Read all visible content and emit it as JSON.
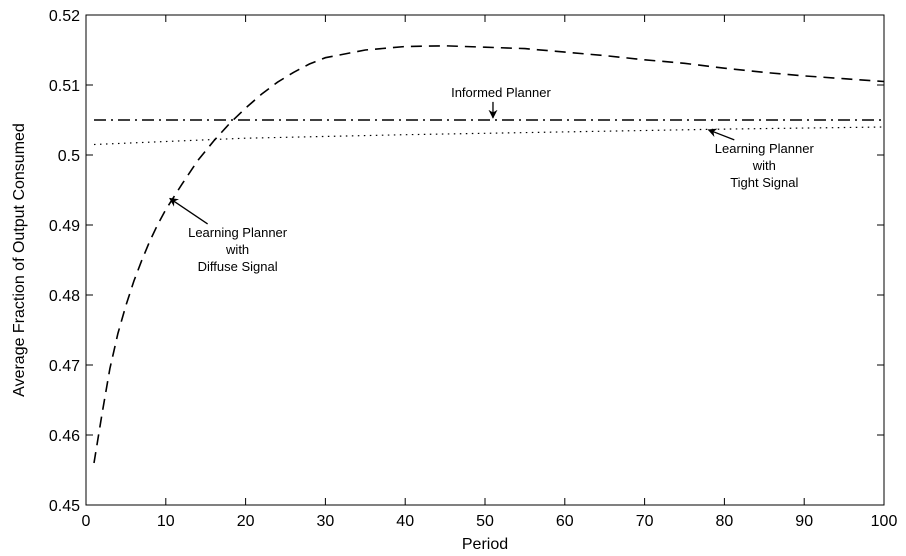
{
  "chart_data": {
    "type": "line",
    "xlabel": "Period",
    "ylabel": "Average Fraction of Output Consumed",
    "xlim": [
      0,
      100
    ],
    "ylim": [
      0.45,
      0.52
    ],
    "grid": false,
    "x_ticks": [
      0,
      10,
      20,
      30,
      40,
      50,
      60,
      70,
      80,
      90,
      100
    ],
    "x_tick_labels": [
      "0",
      "10",
      "20",
      "30",
      "40",
      "50",
      "60",
      "70",
      "80",
      "90",
      "100"
    ],
    "y_ticks": [
      0.45,
      0.46,
      0.47,
      0.48,
      0.49,
      0.5,
      0.51,
      0.52
    ],
    "y_tick_labels": [
      "0.45",
      "0.46",
      "0.47",
      "0.48",
      "0.49",
      "0.5",
      "0.51",
      "0.52"
    ],
    "series": [
      {
        "style": "dashed",
        "x": [
          1,
          2,
          3,
          4,
          5,
          6,
          7,
          8,
          9,
          10,
          12,
          14,
          16,
          18,
          20,
          22,
          24,
          26,
          28,
          30,
          35,
          40,
          45,
          50,
          55,
          60,
          65,
          70,
          75,
          80,
          85,
          90,
          95,
          100
        ],
        "y": [
          0.456,
          0.463,
          0.4695,
          0.4745,
          0.4785,
          0.482,
          0.485,
          0.4877,
          0.4901,
          0.4922,
          0.4958,
          0.4992,
          0.502,
          0.5045,
          0.5067,
          0.5087,
          0.5104,
          0.5118,
          0.513,
          0.5139,
          0.515,
          0.5155,
          0.5156,
          0.5154,
          0.5152,
          0.5147,
          0.5142,
          0.5136,
          0.5131,
          0.5124,
          0.5118,
          0.5113,
          0.5109,
          0.5105
        ]
      },
      {
        "style": "dashdot",
        "x": [
          1,
          100
        ],
        "y": [
          0.505,
          0.505
        ]
      },
      {
        "style": "dotted",
        "x": [
          1,
          20,
          40,
          60,
          80,
          100
        ],
        "y": [
          0.5015,
          0.5024,
          0.5029,
          0.5033,
          0.5037,
          0.504
        ]
      }
    ],
    "annotations": [
      {
        "lines": [
          "Informed Planner"
        ],
        "text_x": 52,
        "text_y": 0.5083,
        "arrow_to": [
          51,
          0.5053
        ]
      },
      {
        "lines": [
          "Learning Planner",
          "with",
          "Tight Signal"
        ],
        "text_x": 85,
        "text_y": 0.5003,
        "arrow_to": [
          78,
          0.5036
        ]
      },
      {
        "lines": [
          "Learning Planner",
          "with",
          "Diffuse Signal"
        ],
        "text_x": 19,
        "text_y": 0.4883,
        "arrow_to": [
          10.5,
          0.4938
        ]
      }
    ]
  }
}
